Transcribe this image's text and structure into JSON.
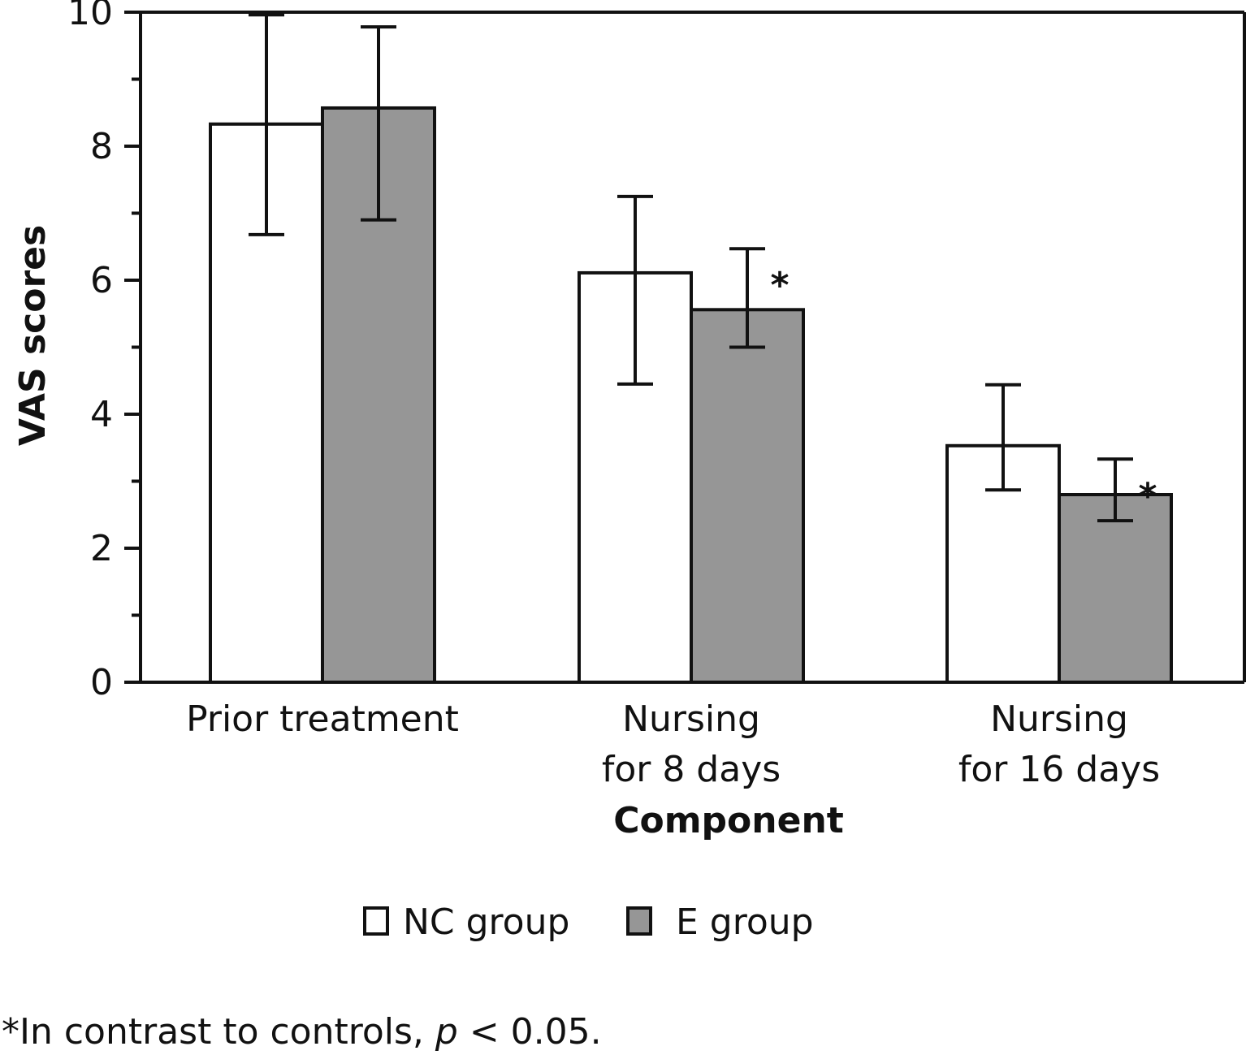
{
  "chart_data": {
    "type": "bar",
    "title": "",
    "xlabel": "Component",
    "ylabel": "VAS scores",
    "ylim": [
      0,
      10
    ],
    "yticks": [
      0,
      2,
      4,
      6,
      8,
      10
    ],
    "y_minor_step": 1,
    "categories": [
      [
        "Prior treatment"
      ],
      [
        "Nursing",
        "for 8 days"
      ],
      [
        "Nursing",
        "for 16 days"
      ]
    ],
    "series": [
      {
        "name": "NC group",
        "color": "#ffffff",
        "values": [
          8.33,
          6.11,
          3.53
        ],
        "err_upper": [
          9.96,
          7.25,
          4.44
        ],
        "err_lower": [
          6.68,
          4.45,
          2.87
        ],
        "significant": [
          false,
          false,
          false
        ]
      },
      {
        "name": "E group",
        "color": "#969696",
        "values": [
          8.57,
          5.56,
          2.8
        ],
        "err_upper": [
          9.78,
          6.47,
          3.33
        ],
        "err_lower": [
          6.9,
          5.0,
          2.41
        ],
        "significant": [
          false,
          true,
          true
        ]
      }
    ],
    "significance_marker": "*",
    "legend_position": "bottom-center",
    "grid": false,
    "footnote": {
      "prefix": "*In contrast to controls, ",
      "italic": "p",
      "suffix": " < 0.05."
    }
  }
}
